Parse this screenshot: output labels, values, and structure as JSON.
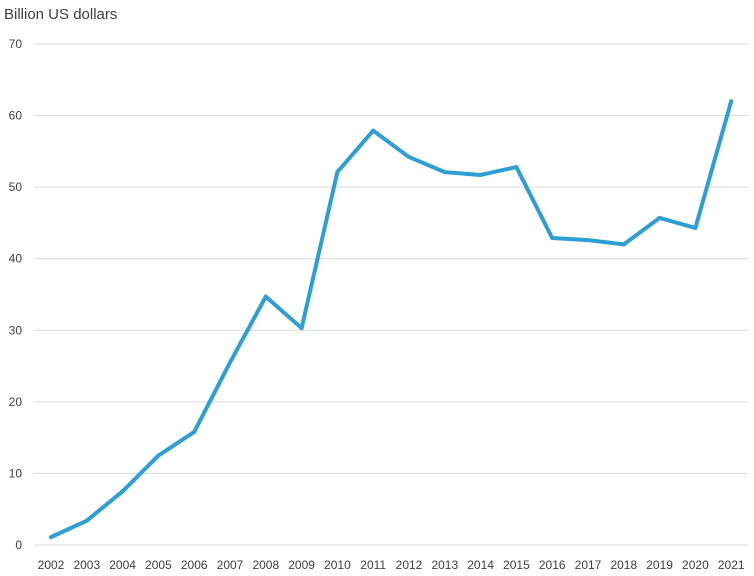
{
  "chart_data": {
    "type": "line",
    "title": "",
    "xlabel": "",
    "ylabel": "Billion US dollars",
    "categories": [
      "2002",
      "2003",
      "2004",
      "2005",
      "2006",
      "2007",
      "2008",
      "2009",
      "2010",
      "2011",
      "2012",
      "2013",
      "2014",
      "2015",
      "2016",
      "2017",
      "2018",
      "2019",
      "2020",
      "2021"
    ],
    "series": [
      {
        "values": [
          1.1,
          3.4,
          7.5,
          12.5,
          15.8,
          25.5,
          34.7,
          30.3,
          52.1,
          57.9,
          54.2,
          52.1,
          51.7,
          52.8,
          42.9,
          42.6,
          42.0,
          45.7,
          44.3,
          62.0
        ],
        "color": "#2e9fd6"
      }
    ],
    "ylim": [
      0,
      70
    ],
    "yticks": [
      0,
      10,
      20,
      30,
      40,
      50,
      60,
      70
    ],
    "grid": true,
    "legend": "none"
  }
}
